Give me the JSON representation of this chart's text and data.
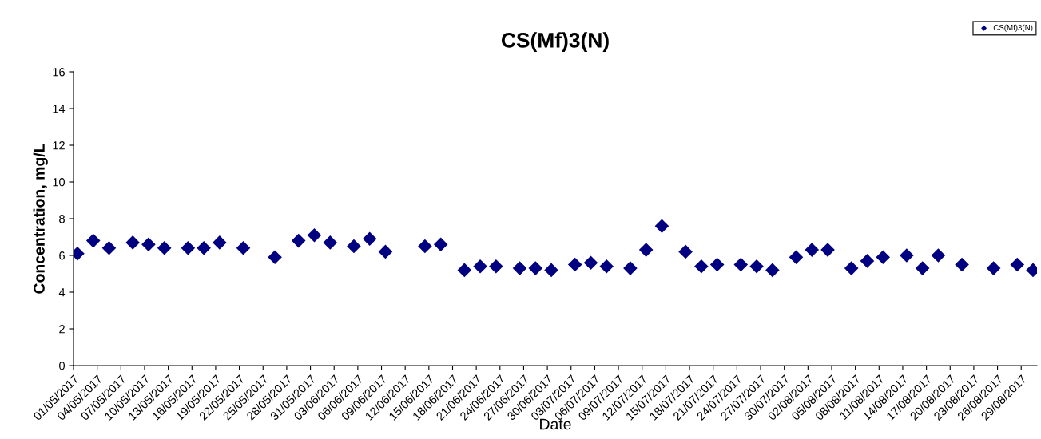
{
  "chart_data": {
    "type": "scatter",
    "title": "CS(Mf)3(N)",
    "xlabel": "Date",
    "ylabel": "Concentration, mg/L",
    "marker": "diamond",
    "legend": "top right",
    "grid": false,
    "xlim": [
      "2017-05-01",
      "2017-08-31"
    ],
    "ylim": [
      0,
      16
    ],
    "yticks": [
      0,
      2,
      4,
      6,
      8,
      10,
      12,
      14,
      16
    ],
    "xticks": [
      {
        "value": "2017-05-01",
        "label": "01/05/2017"
      },
      {
        "value": "2017-05-04",
        "label": "04/05/2017"
      },
      {
        "value": "2017-05-07",
        "label": "07/05/2017"
      },
      {
        "value": "2017-05-10",
        "label": "10/05/2017"
      },
      {
        "value": "2017-05-13",
        "label": "13/05/2017"
      },
      {
        "value": "2017-05-16",
        "label": "16/05/2017"
      },
      {
        "value": "2017-05-19",
        "label": "19/05/2017"
      },
      {
        "value": "2017-05-22",
        "label": "22/05/2017"
      },
      {
        "value": "2017-05-25",
        "label": "25/05/2017"
      },
      {
        "value": "2017-05-28",
        "label": "28/05/2017"
      },
      {
        "value": "2017-05-31",
        "label": "31/05/2017"
      },
      {
        "value": "2017-06-03",
        "label": "03/06/2017"
      },
      {
        "value": "2017-06-06",
        "label": "06/06/2017"
      },
      {
        "value": "2017-06-09",
        "label": "09/06/2017"
      },
      {
        "value": "2017-06-12",
        "label": "12/06/2017"
      },
      {
        "value": "2017-06-15",
        "label": "15/06/2017"
      },
      {
        "value": "2017-06-18",
        "label": "18/06/2017"
      },
      {
        "value": "2017-06-21",
        "label": "21/06/2017"
      },
      {
        "value": "2017-06-24",
        "label": "24/06/2017"
      },
      {
        "value": "2017-06-27",
        "label": "27/06/2017"
      },
      {
        "value": "2017-06-30",
        "label": "30/06/2017"
      },
      {
        "value": "2017-07-03",
        "label": "03/07/2017"
      },
      {
        "value": "2017-07-06",
        "label": "06/07/2017"
      },
      {
        "value": "2017-07-09",
        "label": "09/07/2017"
      },
      {
        "value": "2017-07-12",
        "label": "12/07/2017"
      },
      {
        "value": "2017-07-15",
        "label": "15/07/2017"
      },
      {
        "value": "2017-07-18",
        "label": "18/07/2017"
      },
      {
        "value": "2017-07-21",
        "label": "21/07/2017"
      },
      {
        "value": "2017-07-24",
        "label": "24/07/2017"
      },
      {
        "value": "2017-07-27",
        "label": "27/07/2017"
      },
      {
        "value": "2017-07-30",
        "label": "30/07/2017"
      },
      {
        "value": "2017-08-02",
        "label": "02/08/2017"
      },
      {
        "value": "2017-08-05",
        "label": "05/08/2017"
      },
      {
        "value": "2017-08-08",
        "label": "08/08/2017"
      },
      {
        "value": "2017-08-11",
        "label": "11/08/2017"
      },
      {
        "value": "2017-08-14",
        "label": "14/08/2017"
      },
      {
        "value": "2017-08-17",
        "label": "17/08/2017"
      },
      {
        "value": "2017-08-20",
        "label": "20/08/2017"
      },
      {
        "value": "2017-08-23",
        "label": "23/08/2017"
      },
      {
        "value": "2017-08-26",
        "label": "26/08/2017"
      },
      {
        "value": "2017-08-29",
        "label": "29/08/2017"
      }
    ],
    "series": [
      {
        "name": "CS(Mf)3(N)",
        "color": "#000080",
        "x": [
          "2017-05-01T12:00",
          "2017-05-03T12:00",
          "2017-05-05T12:00",
          "2017-05-08T12:00",
          "2017-05-10T12:00",
          "2017-05-12T12:00",
          "2017-05-15T12:00",
          "2017-05-17T12:00",
          "2017-05-19T12:00",
          "2017-05-22T12:00",
          "2017-05-26T12:00",
          "2017-05-29T12:00",
          "2017-05-31T12:00",
          "2017-06-02T12:00",
          "2017-06-05T12:00",
          "2017-06-07T12:00",
          "2017-06-09T12:00",
          "2017-06-14T12:00",
          "2017-06-16T12:00",
          "2017-06-19T12:00",
          "2017-06-21T12:00",
          "2017-06-23T12:00",
          "2017-06-26T12:00",
          "2017-06-28T12:00",
          "2017-06-30T12:00",
          "2017-07-03T12:00",
          "2017-07-05T12:00",
          "2017-07-07T12:00",
          "2017-07-10T12:00",
          "2017-07-12T12:00",
          "2017-07-14T12:00",
          "2017-07-17T12:00",
          "2017-07-19T12:00",
          "2017-07-21T12:00",
          "2017-07-24T12:00",
          "2017-07-26T12:00",
          "2017-07-28T12:00",
          "2017-07-31T12:00",
          "2017-08-02T12:00",
          "2017-08-04T12:00",
          "2017-08-07T12:00",
          "2017-08-09T12:00",
          "2017-08-11T12:00",
          "2017-08-14T12:00",
          "2017-08-16T12:00",
          "2017-08-18T12:00",
          "2017-08-21T12:00",
          "2017-08-25T12:00",
          "2017-08-28T12:00",
          "2017-08-30T12:00"
        ],
        "values": [
          6.1,
          6.8,
          6.4,
          6.7,
          6.6,
          6.4,
          6.4,
          6.4,
          6.7,
          6.4,
          5.9,
          6.8,
          7.1,
          6.7,
          6.5,
          6.9,
          6.2,
          6.5,
          6.6,
          5.2,
          5.4,
          5.4,
          5.3,
          5.3,
          5.2,
          5.5,
          5.6,
          5.4,
          5.3,
          6.3,
          7.6,
          6.2,
          5.4,
          5.5,
          5.5,
          5.4,
          5.2,
          5.9,
          6.3,
          6.3,
          5.3,
          5.7,
          5.9,
          6.0,
          5.3,
          6.0,
          5.5,
          5.3,
          5.5,
          5.2
        ]
      }
    ]
  }
}
